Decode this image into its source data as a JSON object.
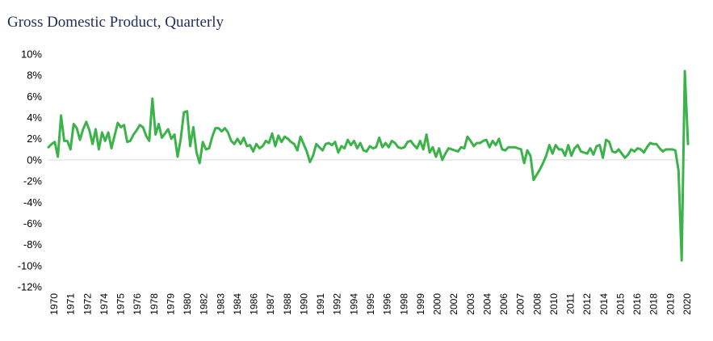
{
  "title": "Gross Domestic Product, Quarterly",
  "colors": {
    "line": "#3cb34a",
    "zero_line": "#d9d9d9",
    "title": "#1f2d5c"
  },
  "chart_data": {
    "type": "line",
    "title": "Gross Domestic Product, Quarterly",
    "xlabel": "",
    "ylabel": "",
    "ylim": [
      -12,
      10
    ],
    "y_ticks": [
      10,
      8,
      6,
      4,
      2,
      0,
      -2,
      -4,
      -6,
      -8,
      -10,
      -12
    ],
    "y_tick_labels": [
      "10%",
      "8%",
      "6%",
      "4%",
      "2%",
      "0%",
      "-2%",
      "-4%",
      "-6%",
      "-8%",
      "-10%",
      "-12%"
    ],
    "x_tick_labels": [
      "1970",
      "1971",
      "1972",
      "1974",
      "1975",
      "1976",
      "1978",
      "1979",
      "1980",
      "1982",
      "1983",
      "1984",
      "1986",
      "1987",
      "1988",
      "1990",
      "1991",
      "1992",
      "1994",
      "1995",
      "1996",
      "1998",
      "1999",
      "2000",
      "2002",
      "2003",
      "2004",
      "2006",
      "2007",
      "2008",
      "2010",
      "2011",
      "2012",
      "2014",
      "2015",
      "2016",
      "2018",
      "2019",
      "2020"
    ],
    "grid": false,
    "legend": "none",
    "series": [
      {
        "x_start": 1970.0,
        "x_step": 0.25,
        "values": [
          1.2,
          1.5,
          1.7,
          0.3,
          4.2,
          1.8,
          1.8,
          1.0,
          3.4,
          3.0,
          1.9,
          2.9,
          3.6,
          2.8,
          1.5,
          2.9,
          1.0,
          2.6,
          1.8,
          2.6,
          1.1,
          2.3,
          3.5,
          3.1,
          3.3,
          1.7,
          1.8,
          2.4,
          2.8,
          3.3,
          3.1,
          2.3,
          1.8,
          5.8,
          2.4,
          3.4,
          2.1,
          2.5,
          2.9,
          2.0,
          2.4,
          0.3,
          2.0,
          4.5,
          4.6,
          1.3,
          3.1,
          0.7,
          -0.3,
          1.7,
          1.0,
          1.1,
          2.2,
          3.0,
          3.0,
          2.7,
          3.0,
          2.6,
          1.8,
          1.5,
          2.0,
          1.5,
          2.1,
          1.3,
          1.4,
          0.8,
          1.5,
          1.1,
          1.3,
          1.8,
          1.6,
          2.5,
          1.3,
          2.3,
          1.7,
          2.2,
          2.0,
          1.7,
          1.5,
          0.9,
          2.2,
          1.5,
          0.8,
          -0.2,
          0.4,
          1.5,
          1.2,
          0.9,
          1.5,
          1.6,
          1.4,
          1.7,
          0.7,
          1.3,
          1.1,
          1.9,
          1.4,
          1.8,
          1.1,
          1.6,
          0.9,
          0.8,
          1.3,
          1.1,
          1.2,
          2.1,
          1.2,
          1.6,
          1.2,
          1.8,
          1.6,
          1.2,
          1.1,
          1.2,
          1.7,
          1.8,
          1.4,
          1.1,
          1.8,
          1.0,
          2.4,
          0.7,
          1.2,
          0.3,
          1.1,
          0.0,
          0.6,
          1.1,
          1.0,
          0.9,
          0.8,
          1.2,
          1.1,
          2.2,
          1.8,
          1.3,
          1.6,
          1.6,
          1.8,
          1.9,
          1.2,
          1.8,
          1.4,
          2.0,
          1.0,
          0.9,
          1.2,
          1.2,
          1.2,
          1.1,
          1.0,
          -0.3,
          0.9,
          0.4,
          -1.9,
          -1.4,
          -0.9,
          -0.3,
          0.4,
          1.4,
          0.6,
          1.4,
          1.0,
          1.0,
          0.4,
          1.4,
          0.4,
          1.1,
          1.4,
          0.8,
          0.7,
          0.6,
          1.1,
          0.5,
          1.3,
          1.4,
          0.2,
          1.9,
          1.7,
          0.8,
          0.7,
          1.0,
          0.6,
          0.2,
          0.5,
          1.0,
          0.8,
          1.1,
          1.0,
          0.7,
          1.2,
          1.6,
          1.5,
          1.5,
          1.1,
          0.8,
          1.0,
          1.0,
          1.0,
          0.9,
          -1.0,
          -9.5,
          8.4,
          1.5
        ]
      }
    ]
  }
}
